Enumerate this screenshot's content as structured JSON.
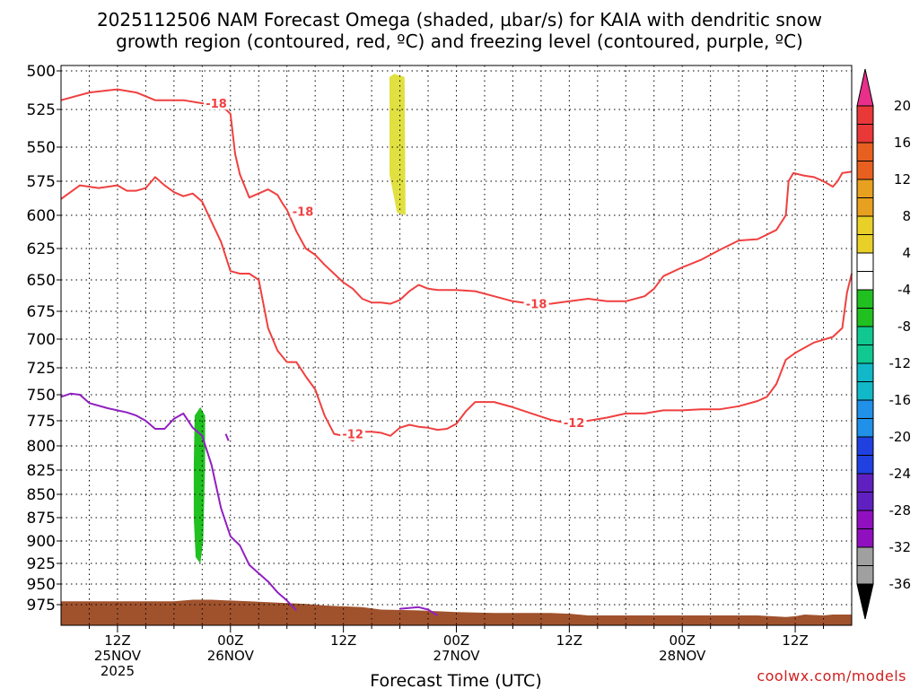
{
  "title": {
    "line1": "2025112506 NAM Forecast Omega (shaded, µbar/s) for KAIA with dendritic snow",
    "line2": "growth region (contoured, red, ºC) and freezing level (contoured, purple, ºC)"
  },
  "credit": "coolwx.com/models",
  "chart_data": {
    "type": "time-height cross section",
    "xlabel": "Forecast Time (UTC)",
    "x_range_hours": [
      0,
      84
    ],
    "x_ticks": [
      {
        "hour": 6,
        "label": "12Z",
        "date": "25NOV",
        "year": "2025"
      },
      {
        "hour": 18,
        "label": "00Z",
        "date": "26NOV",
        "year": ""
      },
      {
        "hour": 30,
        "label": "12Z",
        "date": "",
        "year": ""
      },
      {
        "hour": 42,
        "label": "00Z",
        "date": "27NOV",
        "year": ""
      },
      {
        "hour": 54,
        "label": "12Z",
        "date": "",
        "year": ""
      },
      {
        "hour": 66,
        "label": "00Z",
        "date": "28NOV",
        "year": ""
      },
      {
        "hour": 78,
        "label": "12Z",
        "date": "",
        "year": ""
      }
    ],
    "y_ticks": [
      500,
      525,
      550,
      575,
      600,
      625,
      650,
      675,
      700,
      725,
      750,
      775,
      800,
      825,
      850,
      875,
      900,
      925,
      950,
      975
    ],
    "y_range_hPa": [
      495,
      1000
    ],
    "grid": true,
    "colorbar": {
      "labels": [
        "20",
        "16",
        "12",
        "8",
        "4",
        "-4",
        "-8",
        "-12",
        "-16",
        "-20",
        "-24",
        "-28",
        "-32",
        "-36"
      ],
      "colors": [
        "#e8308a",
        "#e83838",
        "#e86020",
        "#e8901c",
        "#e8b828",
        "#e8e040",
        "#ffffff",
        "#20c020",
        "#10c080",
        "#10c0c0",
        "#1890e0",
        "#2040e0",
        "#6020c0",
        "#9010c0",
        "#a0a0a0",
        "#000000"
      ]
    },
    "contours": [
      {
        "label": "-18",
        "color": "#f04040",
        "points": [
          [
            0,
            519
          ],
          [
            3,
            514
          ],
          [
            6,
            512
          ],
          [
            8,
            514
          ],
          [
            10,
            519
          ],
          [
            12,
            519
          ],
          [
            13,
            519
          ],
          [
            15,
            521
          ],
          [
            17,
            522
          ],
          [
            18,
            528
          ],
          [
            18.5,
            555
          ],
          [
            19,
            570
          ],
          [
            20,
            587
          ],
          [
            22,
            581
          ],
          [
            23,
            585
          ],
          [
            23.5,
            591
          ],
          [
            24,
            596
          ]
        ]
      },
      {
        "label": "-18",
        "color": "#f04040",
        "points": [
          [
            24,
            596
          ],
          [
            25,
            612
          ],
          [
            26,
            625
          ],
          [
            27,
            630
          ],
          [
            28,
            638
          ],
          [
            29,
            645
          ],
          [
            30,
            652
          ],
          [
            31,
            657
          ],
          [
            32,
            665
          ],
          [
            33,
            668
          ],
          [
            34,
            668
          ],
          [
            35,
            669
          ],
          [
            36,
            666
          ],
          [
            37,
            659
          ],
          [
            38,
            654
          ],
          [
            39,
            657
          ],
          [
            40,
            658
          ],
          [
            42,
            658
          ],
          [
            44,
            659
          ],
          [
            46,
            663
          ],
          [
            48,
            667
          ],
          [
            50,
            669
          ],
          [
            52,
            669
          ],
          [
            54,
            667
          ],
          [
            56,
            665
          ],
          [
            58,
            667
          ],
          [
            60,
            667
          ],
          [
            62,
            663
          ],
          [
            63,
            657
          ],
          [
            64,
            647
          ],
          [
            66,
            640
          ],
          [
            68,
            634
          ],
          [
            70,
            626
          ],
          [
            72,
            619
          ],
          [
            74,
            618
          ],
          [
            76,
            611
          ],
          [
            77,
            600
          ],
          [
            77.3,
            575
          ],
          [
            77.8,
            569
          ],
          [
            79,
            571
          ],
          [
            80,
            572
          ],
          [
            81,
            575
          ],
          [
            82,
            579
          ],
          [
            82.5,
            575
          ],
          [
            83,
            569
          ],
          [
            84,
            568
          ]
        ]
      },
      {
        "label": "-12",
        "color": "#f04040",
        "points": [
          [
            0,
            588
          ],
          [
            2,
            578
          ],
          [
            4,
            580
          ],
          [
            6,
            578
          ],
          [
            7,
            582
          ],
          [
            8,
            582
          ],
          [
            9,
            580
          ],
          [
            10,
            572
          ],
          [
            11,
            578
          ],
          [
            12,
            583
          ],
          [
            13,
            586
          ],
          [
            14,
            584
          ],
          [
            15,
            590
          ],
          [
            16,
            605
          ],
          [
            17,
            620
          ],
          [
            18,
            643
          ],
          [
            19,
            645
          ],
          [
            20,
            645
          ],
          [
            21,
            650
          ],
          [
            22,
            690
          ],
          [
            23,
            710
          ],
          [
            24,
            720
          ],
          [
            25,
            720
          ],
          [
            26,
            733
          ],
          [
            27,
            745
          ],
          [
            28,
            770
          ],
          [
            29,
            788
          ],
          [
            30,
            790
          ],
          [
            31,
            795
          ],
          [
            32,
            786
          ],
          [
            33,
            786
          ],
          [
            34,
            787
          ],
          [
            35,
            790
          ],
          [
            36,
            782
          ],
          [
            37,
            779
          ],
          [
            38,
            781
          ],
          [
            39,
            782
          ],
          [
            40,
            784
          ],
          [
            41,
            783
          ],
          [
            42,
            778
          ],
          [
            43,
            766
          ],
          [
            44,
            757
          ],
          [
            46,
            757
          ],
          [
            48,
            762
          ],
          [
            50,
            768
          ],
          [
            52,
            774
          ],
          [
            54,
            778
          ],
          [
            56,
            775
          ],
          [
            58,
            772
          ],
          [
            60,
            768
          ],
          [
            62,
            768
          ],
          [
            64,
            765
          ],
          [
            66,
            765
          ],
          [
            68,
            764
          ],
          [
            70,
            764
          ],
          [
            72,
            761
          ],
          [
            74,
            756
          ],
          [
            75,
            752
          ],
          [
            76,
            740
          ],
          [
            77,
            718
          ],
          [
            78,
            712
          ],
          [
            80,
            703
          ],
          [
            82,
            698
          ],
          [
            83,
            690
          ],
          [
            83.5,
            660
          ],
          [
            84,
            645
          ]
        ]
      },
      {
        "label": "",
        "color": "#9020c0",
        "points": [
          [
            0,
            752
          ],
          [
            1,
            749
          ],
          [
            2,
            750
          ],
          [
            3,
            758
          ],
          [
            5,
            763
          ],
          [
            7,
            767
          ],
          [
            8,
            770
          ],
          [
            9,
            775
          ],
          [
            10,
            783
          ],
          [
            11,
            783
          ],
          [
            12,
            773
          ],
          [
            13,
            768
          ],
          [
            14,
            782
          ],
          [
            15,
            790
          ],
          [
            16,
            820
          ],
          [
            17,
            865
          ],
          [
            18,
            895
          ],
          [
            19,
            905
          ],
          [
            20,
            927
          ],
          [
            22,
            947
          ],
          [
            23,
            960
          ],
          [
            24,
            970
          ],
          [
            25,
            982
          ]
        ]
      },
      {
        "label": "",
        "color": "#9020c0",
        "points": [
          [
            17.5,
            788
          ],
          [
            17.8,
            795
          ]
        ]
      },
      {
        "label": "",
        "color": "#9020c0",
        "points": [
          [
            36,
            980
          ],
          [
            38,
            978
          ],
          [
            39,
            981
          ],
          [
            40,
            988
          ]
        ]
      }
    ],
    "shaded": [
      {
        "value_range": "4 to 8",
        "color": "#e0e040",
        "points": [
          [
            34.9,
            504
          ],
          [
            35.4,
            502
          ],
          [
            36.5,
            504
          ],
          [
            36.6,
            600
          ],
          [
            35.7,
            598
          ],
          [
            34.9,
            570
          ],
          [
            34.9,
            504
          ]
        ]
      },
      {
        "value_range": "-4 to -8",
        "color": "#20c020",
        "points": [
          [
            14.2,
            770
          ],
          [
            14.8,
            762
          ],
          [
            15.3,
            770
          ],
          [
            15.3,
            820
          ],
          [
            15.1,
            900
          ],
          [
            14.8,
            925
          ],
          [
            14.3,
            918
          ],
          [
            14.1,
            875
          ],
          [
            14.1,
            820
          ],
          [
            14.2,
            770
          ]
        ]
      }
    ],
    "terrain": {
      "color": "#a0522d",
      "points": [
        [
          0,
          971
        ],
        [
          12,
          971
        ],
        [
          14,
          969
        ],
        [
          16,
          969
        ],
        [
          18,
          970
        ],
        [
          20,
          971
        ],
        [
          22,
          972
        ],
        [
          24,
          973
        ],
        [
          26,
          974
        ],
        [
          28,
          976
        ],
        [
          32,
          978
        ],
        [
          34,
          981
        ],
        [
          38,
          982
        ],
        [
          42,
          984
        ],
        [
          46,
          985
        ],
        [
          52,
          985
        ],
        [
          54,
          986
        ],
        [
          56,
          988
        ],
        [
          62,
          988
        ],
        [
          74,
          988
        ],
        [
          77,
          990
        ],
        [
          78,
          989
        ],
        [
          79,
          987
        ],
        [
          81,
          988
        ],
        [
          82,
          987
        ],
        [
          84,
          987
        ]
      ]
    }
  }
}
